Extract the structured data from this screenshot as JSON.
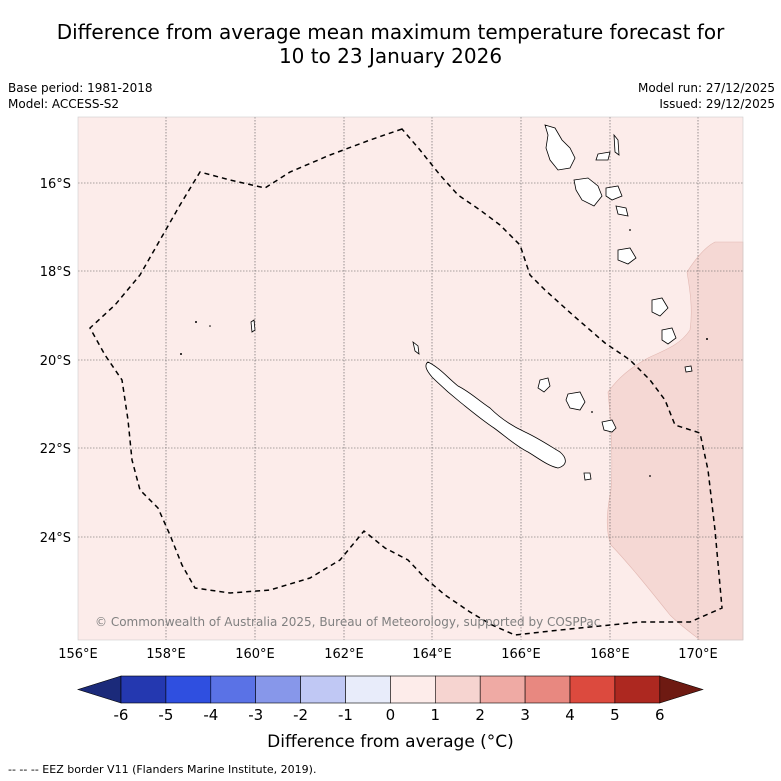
{
  "title_line1": "Difference from average mean maximum temperature forecast for",
  "title_line2": "10 to 23 January 2026",
  "base_period": "Base period: 1981-2018",
  "model": "Model: ACCESS-S2",
  "model_run": "Model run: 27/12/2025",
  "issued": "Issued: 29/12/2025",
  "copyright": "© Commonwealth of Australia 2025, Bureau of Meteorology, supported by COSPPac",
  "lat_labels": [
    "16°S",
    "18°S",
    "20°S",
    "22°S",
    "24°S"
  ],
  "lon_labels": [
    "156°E",
    "158°E",
    "160°E",
    "162°E",
    "164°E",
    "166°E",
    "168°E",
    "170°E"
  ],
  "colorbar": {
    "ticks": [
      "-6",
      "-5",
      "-4",
      "-3",
      "-2",
      "-1",
      "0",
      "1",
      "2",
      "3",
      "4",
      "5",
      "6"
    ],
    "colors": [
      "#1b2a7a",
      "#2438b0",
      "#2f4fe0",
      "#5a72e6",
      "#8797ea",
      "#c0c8f4",
      "#e8ecfa",
      "#fdecea",
      "#f6d4d0",
      "#efaaa4",
      "#e88880",
      "#dc4a3e",
      "#ad2820",
      "#6e1a12"
    ],
    "title": "Difference from average (°C)"
  },
  "footnote": "--  --  -- EEZ border V11 (Flanders Marine Institute, 2019).",
  "colors": {
    "background_fill": "#fcecea",
    "warm_fill": "#f5d8d4",
    "grid": "#555555"
  }
}
